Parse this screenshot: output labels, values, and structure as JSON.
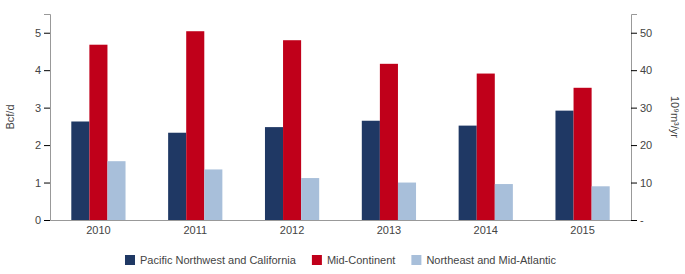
{
  "chart_data": {
    "type": "bar",
    "categories": [
      "2010",
      "2011",
      "2012",
      "2013",
      "2014",
      "2015"
    ],
    "series": [
      {
        "name": "Pacific Northwest and California",
        "color": "#1F3864",
        "values": [
          2.63,
          2.33,
          2.48,
          2.65,
          2.52,
          2.92
        ]
      },
      {
        "name": "Mid-Continent",
        "color": "#C0001A",
        "values": [
          4.68,
          5.04,
          4.8,
          4.17,
          3.91,
          3.53
        ]
      },
      {
        "name": "Northeast and Mid-Atlantic",
        "color": "#A8BFDA",
        "values": [
          1.57,
          1.35,
          1.12,
          1.0,
          0.96,
          0.9
        ]
      }
    ],
    "ylabel": "Bcf/d",
    "y2label": "10⁹m³/yr",
    "ylim": [
      0,
      5.5
    ],
    "yticks": [
      0,
      1,
      2,
      3,
      4,
      5
    ],
    "y2lim": [
      0,
      55
    ],
    "y2ticks": [
      {
        "value": 0,
        "label": "-"
      },
      10,
      20,
      30,
      40,
      50
    ],
    "grid": false,
    "legend": "bottom"
  }
}
